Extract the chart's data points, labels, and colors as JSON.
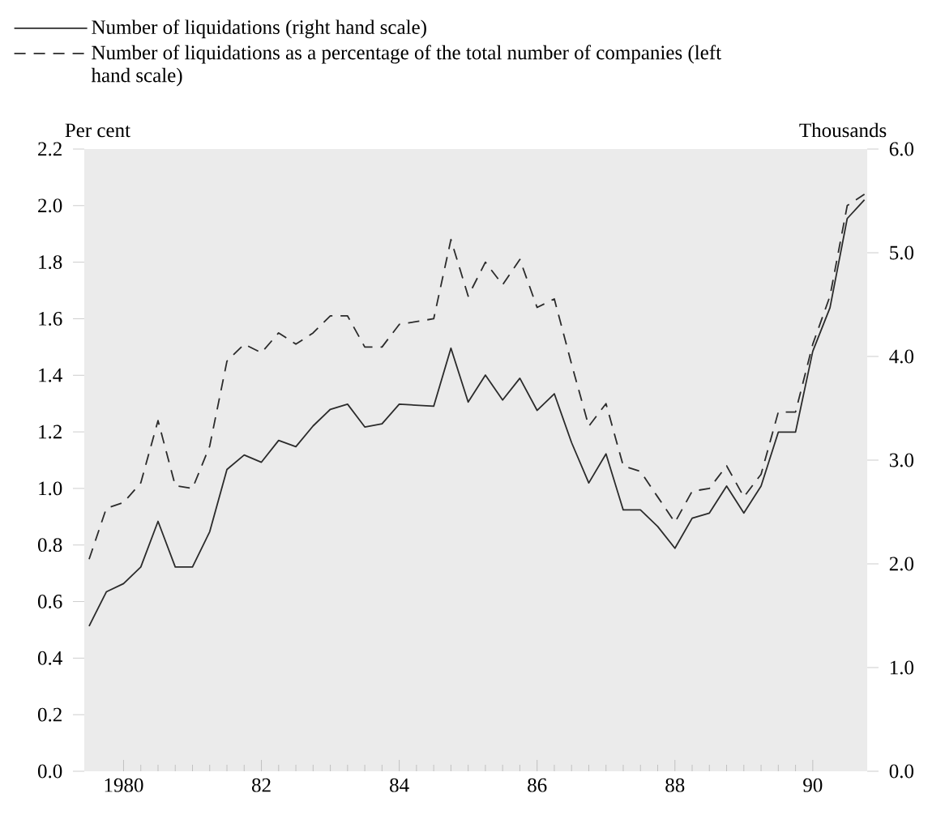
{
  "chart_data": {
    "type": "line",
    "ylabel": "Per cent",
    "y2label": "Thousands",
    "x": [
      1979.5,
      1979.75,
      1980,
      1980.25,
      1980.5,
      1980.75,
      1981,
      1981.25,
      1981.5,
      1981.75,
      1982,
      1982.25,
      1982.5,
      1982.75,
      1983,
      1983.25,
      1983.5,
      1983.75,
      1984,
      1984.25,
      1984.5,
      1984.75,
      1985,
      1985.25,
      1985.5,
      1985.75,
      1986,
      1986.25,
      1986.5,
      1986.75,
      1987,
      1987.25,
      1987.5,
      1987.75,
      1988,
      1988.25,
      1988.5,
      1988.75,
      1989,
      1989.25,
      1989.5,
      1989.75,
      1990,
      1990.25,
      1990.5,
      1990.75
    ],
    "series": [
      {
        "name": "Number of liquidations (right hand scale)",
        "color": "#2b2b2b",
        "axis": "y2",
        "line_style": "solid",
        "values": [
          1.4,
          1.73,
          1.81,
          1.97,
          2.41,
          1.97,
          1.97,
          2.31,
          2.91,
          3.05,
          2.98,
          3.19,
          3.13,
          3.33,
          3.49,
          3.54,
          3.32,
          3.35,
          3.54,
          3.53,
          3.52,
          4.08,
          3.56,
          3.82,
          3.58,
          3.79,
          3.48,
          3.64,
          3.17,
          2.78,
          3.06,
          2.52,
          2.52,
          2.36,
          2.15,
          2.44,
          2.49,
          2.75,
          2.49,
          2.75,
          3.27,
          3.27,
          4.05,
          4.47,
          5.33,
          5.51
        ]
      },
      {
        "name": "Number of liquidations as a percentage of the total number of companies (left hand scale)",
        "color": "#2b2b2b",
        "axis": "y",
        "line_style": "dashed",
        "values": [
          0.75,
          0.93,
          0.95,
          1.02,
          1.24,
          1.01,
          1.0,
          1.15,
          1.45,
          1.51,
          1.48,
          1.55,
          1.51,
          1.55,
          1.61,
          1.61,
          1.5,
          1.5,
          1.58,
          1.59,
          1.6,
          1.88,
          1.68,
          1.8,
          1.72,
          1.81,
          1.64,
          1.67,
          1.44,
          1.22,
          1.3,
          1.08,
          1.06,
          0.97,
          0.88,
          0.99,
          1.0,
          1.08,
          0.97,
          1.05,
          1.27,
          1.27,
          1.51,
          1.68,
          2.0,
          2.04
        ]
      }
    ],
    "xlim": [
      1979.43,
      1990.79
    ],
    "xticks": [
      1980,
      {
        "value": 1982,
        "label": "82"
      },
      {
        "value": 1984,
        "label": "84"
      },
      {
        "value": 1986,
        "label": "86"
      },
      {
        "value": 1988,
        "label": "88"
      },
      {
        "value": 1990,
        "label": "90"
      }
    ],
    "ylim": [
      0,
      2.2
    ],
    "yticks": [
      {
        "value": 0,
        "label": "0.0"
      },
      0.2,
      0.4,
      0.6,
      0.8,
      {
        "value": 1,
        "label": "1.0"
      },
      1.2,
      1.4,
      1.6,
      1.8,
      {
        "value": 2,
        "label": "2.0"
      },
      2.2
    ],
    "y2lim": [
      0,
      6
    ],
    "y2ticks": [
      {
        "value": 0,
        "label": "0.0"
      },
      {
        "value": 1,
        "label": "1.0"
      },
      {
        "value": 2,
        "label": "2.0"
      },
      {
        "value": 3,
        "label": "3.0"
      },
      {
        "value": 4,
        "label": "4.0"
      },
      {
        "value": 5,
        "label": "5.0"
      },
      {
        "value": 6,
        "label": "6.0"
      }
    ],
    "grid": false,
    "legend": "top",
    "marker": "none"
  }
}
